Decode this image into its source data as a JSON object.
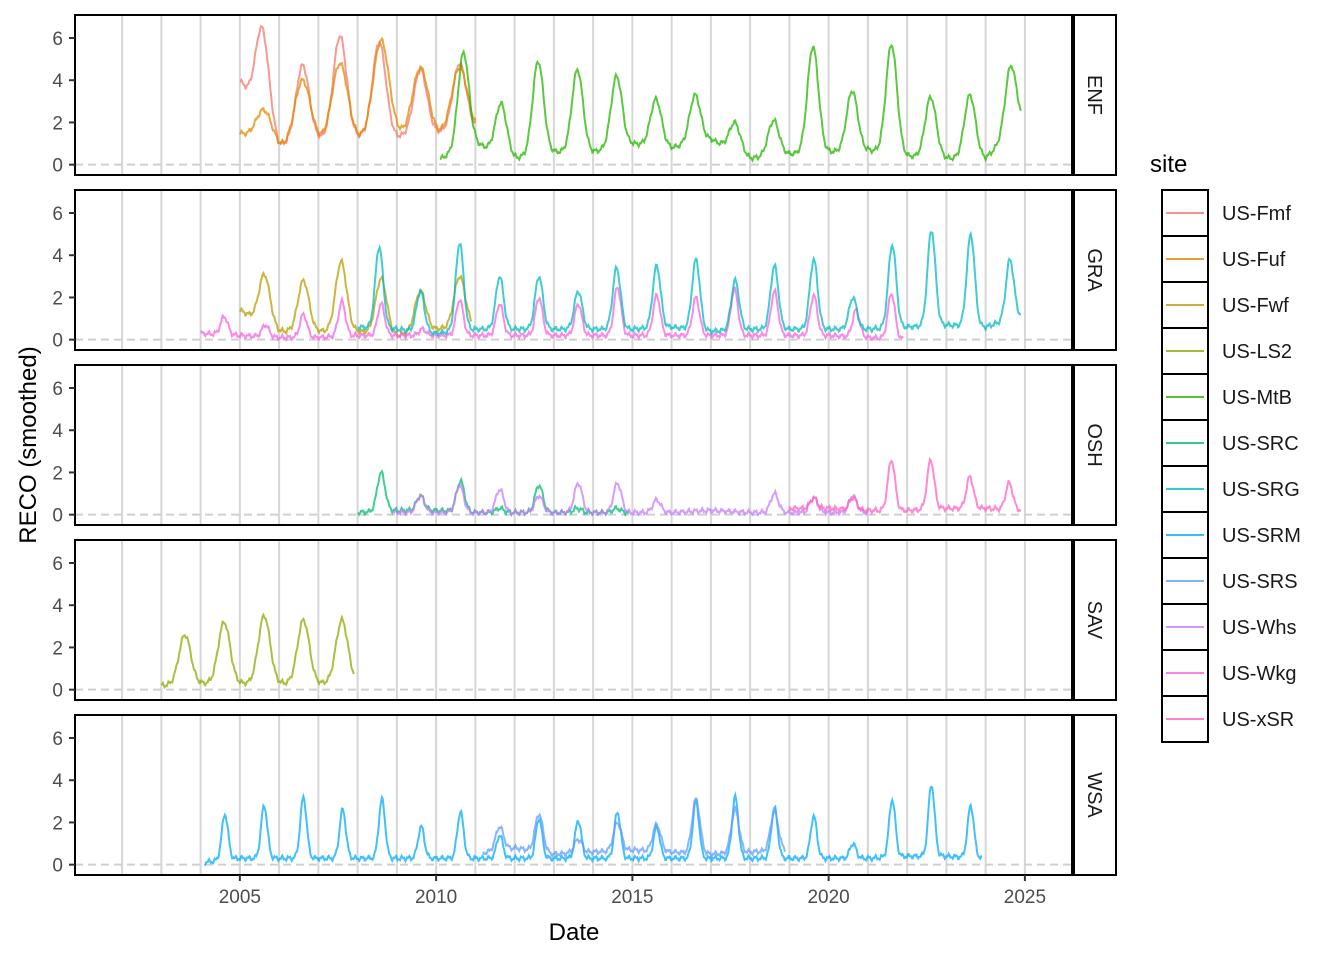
{
  "chart_data": {
    "type": "line",
    "xlabel": "Date",
    "ylabel": "RECO (smoothed)",
    "xlim": [
      2000.8,
      2026.2
    ],
    "ylim": [
      -0.3,
      6.9
    ],
    "x_ticks": [
      2005,
      2010,
      2015,
      2020,
      2025
    ],
    "x_tick_labels": [
      "2005",
      "2010",
      "2015",
      "2020",
      "2025"
    ],
    "y_ticks": [
      0,
      2,
      4,
      6
    ],
    "y_tick_labels": [
      "0",
      "2",
      "4",
      "6"
    ],
    "vlines": [
      2002,
      2003,
      2004,
      2005,
      2006,
      2007,
      2008,
      2009,
      2010,
      2011,
      2012,
      2013,
      2014,
      2015,
      2016,
      2017,
      2018,
      2019,
      2020,
      2021,
      2022,
      2023,
      2024,
      2025
    ],
    "hline": 0,
    "grid": false,
    "legend": {
      "title": "site",
      "placement": "right",
      "entries": [
        {
          "label": "US-Fmf",
          "color": "#F8766D"
        },
        {
          "label": "US-Fuf",
          "color": "#E18A00"
        },
        {
          "label": "US-Fwf",
          "color": "#BE9C00"
        },
        {
          "label": "US-LS2",
          "color": "#8CAB00"
        },
        {
          "label": "US-MtB",
          "color": "#24B700"
        },
        {
          "label": "US-SRC",
          "color": "#00BE70"
        },
        {
          "label": "US-SRG",
          "color": "#00BBC3"
        },
        {
          "label": "US-SRM",
          "color": "#00ACFC"
        },
        {
          "label": "US-SRS",
          "color": "#619CFF"
        },
        {
          "label": "US-Whs",
          "color": "#C77CFF"
        },
        {
          "label": "US-Wkg",
          "color": "#F564E3"
        },
        {
          "label": "US-xSR",
          "color": "#FF61C3"
        }
      ]
    },
    "panels": [
      {
        "label": "ENF",
        "series": [
          {
            "name": "US-Fmf",
            "color": "#F8766D",
            "start": 2005.0,
            "end": 2011.0,
            "peaks": [
              [
                2005.55,
                6.5
              ],
              [
                2006.6,
                4.7
              ],
              [
                2007.55,
                6.1
              ],
              [
                2008.55,
                5.8
              ],
              [
                2009.6,
                4.5
              ],
              [
                2010.6,
                4.8
              ]
            ],
            "base": [
              4.0,
              0.9,
              1.2,
              1.3,
              1.3,
              1.5,
              1.7
            ],
            "width": 0.17
          },
          {
            "name": "US-Fuf",
            "color": "#E18A00",
            "start": 2005.0,
            "end": 2011.0,
            "peaks": [
              [
                2005.6,
                2.6
              ],
              [
                2006.6,
                4.0
              ],
              [
                2007.55,
                4.8
              ],
              [
                2008.6,
                5.9
              ],
              [
                2009.6,
                4.6
              ],
              [
                2010.6,
                4.6
              ]
            ],
            "base": [
              1.5,
              0.8,
              1.1,
              1.2,
              1.4,
              1.4,
              1.6
            ],
            "width": 0.2
          },
          {
            "name": "US-MtB",
            "color": "#24B700",
            "start": 2010.1,
            "end": 2024.9,
            "peaks": [
              [
                2010.7,
                5.3
              ],
              [
                2011.65,
                2.9
              ],
              [
                2012.6,
                4.9
              ],
              [
                2013.6,
                4.5
              ],
              [
                2014.6,
                4.2
              ],
              [
                2015.6,
                3.1
              ],
              [
                2016.6,
                3.3
              ],
              [
                2017.6,
                2.0
              ],
              [
                2018.6,
                2.1
              ],
              [
                2019.6,
                5.6
              ],
              [
                2020.6,
                3.5
              ],
              [
                2021.6,
                5.7
              ],
              [
                2022.6,
                3.2
              ],
              [
                2023.6,
                3.3
              ],
              [
                2024.65,
                4.7
              ]
            ],
            "base": [
              0.2,
              1.0,
              0.3,
              0.6,
              0.6,
              1.0,
              0.8,
              1.2,
              0.3,
              0.5,
              0.6,
              0.7,
              0.4,
              0.3,
              0.3,
              2.2
            ],
            "width": 0.14
          }
        ]
      },
      {
        "label": "GRA",
        "series": [
          {
            "name": "US-Fwf",
            "color": "#BE9C00",
            "start": 2005.0,
            "end": 2010.9,
            "peaks": [
              [
                2005.62,
                3.1
              ],
              [
                2006.62,
                2.8
              ],
              [
                2007.58,
                3.7
              ],
              [
                2008.6,
                2.9
              ],
              [
                2009.6,
                2.3
              ],
              [
                2010.6,
                3.0
              ]
            ],
            "base": [
              1.4,
              0.4,
              0.4,
              0.4,
              0.2,
              0.5,
              0.7
            ],
            "width": 0.14
          },
          {
            "name": "US-Wkg",
            "color": "#F564E3",
            "start": 2004.0,
            "end": 2021.9,
            "peaks": [
              [
                2004.6,
                1.1
              ],
              [
                2005.65,
                0.7
              ],
              [
                2006.62,
                1.2
              ],
              [
                2007.6,
                1.8
              ],
              [
                2008.6,
                1.7
              ],
              [
                2009.65,
                0.5
              ],
              [
                2010.6,
                1.9
              ],
              [
                2011.62,
                1.7
              ],
              [
                2012.62,
                2.0
              ],
              [
                2013.62,
                1.7
              ],
              [
                2014.62,
                2.5
              ],
              [
                2015.62,
                2.1
              ],
              [
                2016.62,
                2.0
              ],
              [
                2017.6,
                2.4
              ],
              [
                2018.62,
                2.3
              ],
              [
                2019.62,
                2.1
              ],
              [
                2020.7,
                1.4
              ],
              [
                2021.6,
                2.2
              ]
            ],
            "base": [
              0.3,
              0.2,
              0.1,
              0.1,
              0.2,
              0.2,
              0.2,
              0.2,
              0.2,
              0.2,
              0.2,
              0.2,
              0.2,
              0.2,
              0.2,
              0.2,
              0.2,
              0.1,
              0.0
            ],
            "width": 0.09
          },
          {
            "name": "US-SRG",
            "color": "#00BBC3",
            "start": 2008.0,
            "end": 2024.9,
            "peaks": [
              [
                2008.55,
                4.4
              ],
              [
                2009.6,
                2.3
              ],
              [
                2010.6,
                4.6
              ],
              [
                2011.62,
                3.0
              ],
              [
                2012.62,
                3.0
              ],
              [
                2013.62,
                2.3
              ],
              [
                2014.6,
                3.4
              ],
              [
                2015.62,
                3.5
              ],
              [
                2016.62,
                3.8
              ],
              [
                2017.62,
                2.8
              ],
              [
                2018.62,
                3.5
              ],
              [
                2019.62,
                3.8
              ],
              [
                2020.62,
                2.0
              ],
              [
                2021.62,
                4.5
              ],
              [
                2022.62,
                5.2
              ],
              [
                2023.62,
                5.0
              ],
              [
                2024.62,
                3.8
              ]
            ],
            "base": [
              0.6,
              0.5,
              0.3,
              0.5,
              0.5,
              0.5,
              0.5,
              0.5,
              0.6,
              0.4,
              0.5,
              0.5,
              0.5,
              0.5,
              0.6,
              0.7,
              0.6,
              1.2
            ],
            "width": 0.1
          }
        ]
      },
      {
        "label": "OSH",
        "series": [
          {
            "name": "US-SRC",
            "color": "#00BE70",
            "start": 2008.0,
            "end": 2014.9,
            "peaks": [
              [
                2008.6,
                2.0
              ],
              [
                2009.6,
                0.9
              ],
              [
                2010.62,
                1.6
              ],
              [
                2011.62,
                0.3
              ],
              [
                2012.62,
                1.4
              ],
              [
                2013.6,
                0.3
              ],
              [
                2014.6,
                0.3
              ]
            ],
            "base": [
              0.1,
              0.2,
              0.2,
              0.1,
              0.1,
              0.1,
              0.1,
              0.1
            ],
            "width": 0.1
          },
          {
            "name": "US-Whs",
            "color": "#C77CFF",
            "start": 2008.9,
            "end": 2021.0,
            "peaks": [
              [
                2009.6,
                0.9
              ],
              [
                2010.6,
                1.4
              ],
              [
                2011.62,
                1.2
              ],
              [
                2012.62,
                0.9
              ],
              [
                2013.62,
                1.5
              ],
              [
                2014.62,
                1.5
              ],
              [
                2015.62,
                0.7
              ],
              [
                2018.62,
                1.0
              ],
              [
                2019.62,
                0.8
              ],
              [
                2020.62,
                0.9
              ]
            ],
            "base": [
              0.2,
              0.1,
              0.1,
              0.1,
              0.1,
              0.1,
              0.1,
              0.1,
              0.1,
              0.2,
              0.1
            ],
            "width": 0.1
          },
          {
            "name": "US-xSR",
            "color": "#FF61C3",
            "start": 2019.0,
            "end": 2024.9,
            "peaks": [
              [
                2019.62,
                0.8
              ],
              [
                2020.62,
                0.8
              ],
              [
                2021.6,
                2.6
              ],
              [
                2022.6,
                2.6
              ],
              [
                2023.6,
                1.8
              ],
              [
                2024.6,
                1.5
              ]
            ],
            "base": [
              0.3,
              0.3,
              0.2,
              0.2,
              0.3,
              0.3,
              0.2
            ],
            "width": 0.09
          }
        ]
      },
      {
        "label": "SAV",
        "series": [
          {
            "name": "US-LS2",
            "color": "#8CAB00",
            "start": 2003.0,
            "end": 2007.9,
            "peaks": [
              [
                2003.6,
                2.6
              ],
              [
                2004.6,
                3.2
              ],
              [
                2005.62,
                3.5
              ],
              [
                2006.62,
                3.3
              ],
              [
                2007.6,
                3.3
              ]
            ],
            "base": [
              0.2,
              0.3,
              0.3,
              0.3,
              0.3,
              0.4
            ],
            "width": 0.15
          }
        ]
      },
      {
        "label": "WSA",
        "series": [
          {
            "name": "US-SRM",
            "color": "#00ACFC",
            "start": 2004.1,
            "end": 2023.9,
            "peaks": [
              [
                2004.62,
                2.4
              ],
              [
                2005.62,
                2.8
              ],
              [
                2006.62,
                3.2
              ],
              [
                2007.62,
                2.6
              ],
              [
                2008.62,
                3.1
              ],
              [
                2009.62,
                1.8
              ],
              [
                2010.62,
                2.5
              ],
              [
                2011.62,
                1.4
              ],
              [
                2012.62,
                2.2
              ],
              [
                2013.62,
                2.1
              ],
              [
                2014.62,
                2.5
              ],
              [
                2015.62,
                1.8
              ],
              [
                2016.62,
                3.0
              ],
              [
                2017.62,
                3.2
              ],
              [
                2018.62,
                2.7
              ],
              [
                2019.62,
                2.3
              ],
              [
                2020.62,
                1.0
              ],
              [
                2021.62,
                3.1
              ],
              [
                2022.62,
                3.8
              ],
              [
                2023.62,
                2.8
              ]
            ],
            "base": [
              0.1,
              0.3,
              0.3,
              0.3,
              0.3,
              0.3,
              0.3,
              0.3,
              0.3,
              0.3,
              0.3,
              0.3,
              0.3,
              0.3,
              0.3,
              0.3,
              0.3,
              0.3,
              0.4,
              0.4,
              0.3
            ],
            "width": 0.08
          },
          {
            "name": "US-SRS",
            "color": "#619CFF",
            "start": 2011.2,
            "end": 2018.9,
            "peaks": [
              [
                2011.62,
                1.8
              ],
              [
                2012.62,
                2.4
              ],
              [
                2013.62,
                1.2
              ],
              [
                2014.62,
                2.0
              ],
              [
                2015.62,
                1.9
              ],
              [
                2016.62,
                3.1
              ],
              [
                2017.62,
                2.6
              ],
              [
                2018.62,
                2.5
              ]
            ],
            "base": [
              0.5,
              0.8,
              0.5,
              0.6,
              0.7,
              0.6,
              0.5,
              0.6,
              0.7
            ],
            "width": 0.1
          }
        ]
      }
    ]
  }
}
